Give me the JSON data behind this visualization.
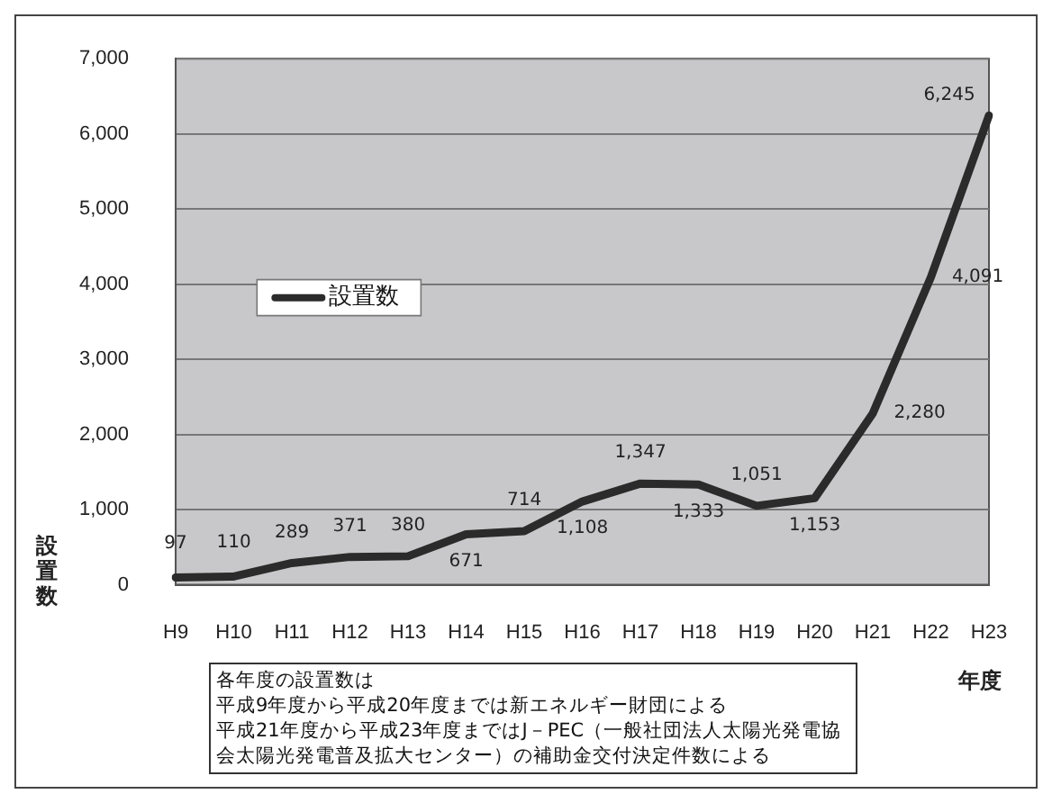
{
  "chart_data": {
    "type": "line",
    "categories": [
      "H9",
      "H10",
      "H11",
      "H12",
      "H13",
      "H14",
      "H15",
      "H16",
      "H17",
      "H18",
      "H19",
      "H20",
      "H21",
      "H22",
      "H23"
    ],
    "series": [
      {
        "name": "設置数",
        "color": "#2b2b2b",
        "values": [
          97,
          110,
          289,
          371,
          380,
          671,
          714,
          1108,
          1347,
          1333,
          1051,
          1153,
          2280,
          4091,
          6245
        ],
        "value_labels": [
          "97",
          "110",
          "289",
          "371",
          "380",
          "671",
          "714",
          "1,108",
          "1,347",
          "1,333",
          "1,051",
          "1,153",
          "2,280",
          "4,091",
          "6,245"
        ]
      }
    ],
    "ylabel": "設置数",
    "xlabel": "年度",
    "ylim": [
      0,
      7000
    ],
    "yticks": [
      {
        "value": 0,
        "label": "0"
      },
      {
        "value": 1000,
        "label": "1,000"
      },
      {
        "value": 2000,
        "label": "2,000"
      },
      {
        "value": 3000,
        "label": "3,000"
      },
      {
        "value": 4000,
        "label": "4,000"
      },
      {
        "value": 5000,
        "label": "5,000"
      },
      {
        "value": 6000,
        "label": "6,000"
      },
      {
        "value": 7000,
        "label": "7,000"
      }
    ],
    "grid": "y",
    "legend": "left",
    "marker": "none",
    "annotations": [
      "各年度の設置数は",
      "平成9年度から平成20年度までは新エネルギー財団による",
      "平成21年度から平成23年度まではJ－PEC（一般社団法人太陽光発電協会太陽光発電普及拡大センター）の補助金交付決定件数による"
    ]
  }
}
